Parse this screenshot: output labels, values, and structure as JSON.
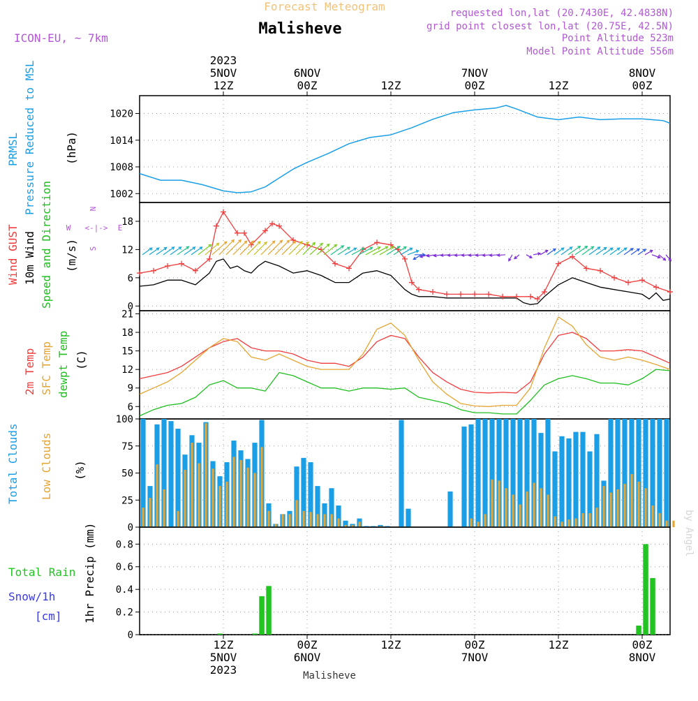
{
  "header": {
    "product_title": "Forecast Meteogram",
    "location": "Malisheve",
    "model": "ICON-EU, ~ 7km",
    "requested": "requested lon,lat (20.7430E, 42.4838N)",
    "grid_point": "grid point closest lon,lat (20.75E, 42.5N)",
    "point_altitude": "Point Altitude 523m",
    "model_altitude": "Model Point Altitude 556m",
    "footer_location": "Malisheve",
    "credit": "by Angel"
  },
  "colors": {
    "pressure": "#1a9fe6",
    "gust": "#f03c3c",
    "wind": "#000000",
    "temp2m": "#f03c3c",
    "sfc_temp": "#e6a532",
    "dewpt": "#1fbf1f",
    "total_clouds": "#1a9fe6",
    "low_clouds": "#e6a532",
    "rain": "#22c422",
    "snow": "#3a3ae6",
    "title": "#f2c277",
    "info": "#b257d6"
  },
  "time_axis": {
    "ticks_top": [
      {
        "t": 12,
        "lines": [
          "2023",
          "5NOV",
          "12Z"
        ]
      },
      {
        "t": 24,
        "lines": [
          "6NOV",
          "00Z"
        ]
      },
      {
        "t": 36,
        "lines": [
          "12Z"
        ]
      },
      {
        "t": 48,
        "lines": [
          "7NOV",
          "00Z"
        ]
      },
      {
        "t": 60,
        "lines": [
          "12Z"
        ]
      },
      {
        "t": 72,
        "lines": [
          "8NOV",
          "00Z"
        ]
      }
    ],
    "ticks_bottom": [
      {
        "t": 12,
        "lines": [
          "12Z",
          "5NOV",
          "2023"
        ]
      },
      {
        "t": 24,
        "lines": [
          "00Z",
          "6NOV"
        ]
      },
      {
        "t": 36,
        "lines": [
          "12Z"
        ]
      },
      {
        "t": 48,
        "lines": [
          "00Z",
          "7NOV"
        ]
      },
      {
        "t": 60,
        "lines": [
          "12Z"
        ]
      },
      {
        "t": 72,
        "lines": [
          "00Z",
          "8NOV"
        ]
      }
    ]
  },
  "chart_data": [
    {
      "type": "line",
      "id": "pressure",
      "labels": [
        "PRMSL",
        "Pressure Reduced to MSL",
        "(hPa)"
      ],
      "ylim": [
        1000,
        1024
      ],
      "yticks": [
        1002,
        1008,
        1014,
        1020
      ],
      "grid": true,
      "series": [
        {
          "name": "PRMSL",
          "x": [
            0,
            3,
            6,
            9,
            12,
            14,
            16,
            18,
            20,
            22,
            24,
            27,
            30,
            33,
            36,
            39,
            42,
            45,
            48,
            51,
            52.5,
            54,
            57,
            60,
            63,
            66,
            69,
            72,
            75,
            76
          ],
          "y": [
            1006.5,
            1005,
            1005,
            1004,
            1002.6,
            1002.2,
            1002.4,
            1003.5,
            1005.5,
            1007.5,
            1009,
            1011,
            1013.2,
            1014.6,
            1015.2,
            1016.8,
            1018.7,
            1020.2,
            1020.8,
            1021.2,
            1021.8,
            1021,
            1019.2,
            1018.6,
            1019.2,
            1018.6,
            1018.8,
            1018.8,
            1018.4,
            1017.8
          ]
        }
      ]
    },
    {
      "type": "line",
      "id": "wind",
      "labels": [
        "Wind GUST",
        "10m Wind",
        "Speed and Direction",
        "(m/s)"
      ],
      "compass": [
        "N",
        "E",
        "S",
        "W"
      ],
      "ylim": [
        -1,
        22
      ],
      "yticks": [
        0,
        6,
        12,
        18
      ],
      "grid": true,
      "series": [
        {
          "name": "Wind GUST",
          "x": [
            0,
            2,
            4,
            6,
            8,
            10,
            11,
            12,
            14,
            15,
            16,
            18,
            19,
            20,
            22,
            24,
            26,
            28,
            30,
            32,
            34,
            36,
            37,
            38,
            39,
            40,
            42,
            44,
            46,
            48,
            50,
            52,
            54,
            56,
            57,
            58,
            60,
            62,
            64,
            66,
            68,
            70,
            72,
            74,
            76
          ],
          "y": [
            7,
            7.5,
            8.5,
            9,
            7.5,
            10,
            17,
            20,
            15.5,
            15.5,
            13,
            16,
            17.5,
            17,
            14,
            13,
            12,
            9,
            8,
            12,
            13.5,
            13,
            12,
            10,
            5,
            3.5,
            3,
            2.5,
            2.5,
            2.5,
            2.5,
            2,
            2,
            2,
            1.5,
            3,
            9,
            10.5,
            8,
            7.5,
            6,
            5,
            5.5,
            4,
            3
          ]
        },
        {
          "name": "10m Wind",
          "x": [
            0,
            2,
            4,
            6,
            8,
            10,
            11,
            12,
            13,
            14,
            15,
            16,
            17,
            18,
            19,
            20,
            22,
            24,
            26,
            28,
            30,
            32,
            34,
            36,
            37,
            38,
            39,
            40,
            42,
            44,
            46,
            48,
            50,
            52,
            54,
            55,
            56,
            57,
            58,
            60,
            62,
            64,
            66,
            68,
            70,
            72,
            73,
            74,
            75,
            76
          ],
          "y": [
            4.2,
            4.5,
            5.5,
            5.5,
            4.5,
            7,
            9.5,
            10,
            8,
            8.5,
            7.5,
            7,
            8.5,
            9.5,
            9,
            8.5,
            7,
            7.5,
            6.5,
            5,
            5,
            7,
            7.5,
            6.5,
            5,
            3.5,
            2.5,
            2,
            2,
            1.7,
            1.7,
            1.7,
            1.7,
            1.7,
            1.7,
            0.7,
            0.3,
            0.5,
            2,
            4.5,
            6,
            5,
            4,
            3.5,
            3,
            2.5,
            1.5,
            2.8,
            1.2,
            1.5
          ]
        }
      ],
      "wind_arrows": {
        "x": [
          0,
          1,
          2,
          3,
          4,
          5,
          6,
          7,
          8,
          9,
          10,
          11,
          12,
          13,
          14,
          15,
          16,
          17,
          18,
          19,
          20,
          21,
          22,
          23,
          24,
          25,
          26,
          27,
          28,
          29,
          30,
          31,
          32,
          33,
          34,
          35,
          36,
          37,
          38,
          39,
          40,
          41,
          42,
          43,
          44,
          45,
          46,
          47,
          48,
          49,
          50,
          51,
          52,
          53,
          54,
          55,
          56,
          57,
          58,
          59,
          60,
          61,
          62,
          63,
          64,
          65,
          66,
          67,
          68,
          69,
          70,
          71,
          72,
          73,
          74,
          75
        ],
        "speed": [
          4,
          4,
          4.5,
          5,
          5,
          5.5,
          5,
          5,
          7,
          8,
          9,
          10,
          10,
          9,
          9,
          8.5,
          8,
          9,
          9.5,
          9.5,
          9,
          8.5,
          8,
          7.5,
          7.5,
          7,
          7,
          6.5,
          5.5,
          5,
          5.5,
          6.5,
          7,
          7.5,
          7,
          6.5,
          6,
          5,
          4,
          3,
          2.5,
          2,
          2,
          2,
          2,
          2,
          2,
          2,
          2,
          2,
          2,
          2,
          1.5,
          1,
          0.5,
          0.5,
          1,
          2,
          3,
          4,
          5,
          6,
          6,
          5.5,
          5,
          4.5,
          4,
          4,
          4,
          3.5,
          3,
          2.5,
          2,
          2,
          2,
          1.5
        ],
        "dir_to": [
          55,
          55,
          55,
          55,
          55,
          55,
          55,
          55,
          52,
          50,
          48,
          45,
          45,
          45,
          45,
          45,
          45,
          45,
          45,
          45,
          45,
          45,
          45,
          45,
          48,
          50,
          52,
          55,
          58,
          60,
          62,
          62,
          62,
          62,
          60,
          58,
          58,
          60,
          70,
          90,
          240,
          255,
          260,
          262,
          265,
          265,
          265,
          265,
          265,
          265,
          265,
          265,
          265,
          210,
          230,
          120,
          80,
          60,
          55,
          55,
          55,
          55,
          55,
          55,
          55,
          55,
          55,
          55,
          55,
          55,
          55,
          55,
          60,
          110,
          130,
          140
        ]
      }
    },
    {
      "type": "line",
      "id": "temperature",
      "labels": [
        "2m Temp",
        "SFC Temp",
        "dewpt Temp",
        "(C)"
      ],
      "ylim": [
        4,
        21.5
      ],
      "yticks": [
        6,
        9,
        12,
        15,
        18,
        21
      ],
      "grid": true,
      "series": [
        {
          "name": "2m Temp",
          "x": [
            0,
            2,
            4,
            6,
            8,
            10,
            12,
            14,
            16,
            18,
            20,
            22,
            24,
            26,
            28,
            30,
            32,
            34,
            36,
            38,
            40,
            42,
            44,
            46,
            48,
            50,
            52,
            54,
            56,
            58,
            60,
            62,
            64,
            66,
            68,
            70,
            72,
            74,
            76
          ],
          "y": [
            10.5,
            11,
            11.5,
            12.5,
            14,
            15.5,
            16.5,
            17,
            15.5,
            15,
            15,
            14.5,
            13.5,
            13,
            13,
            12.5,
            14,
            16.5,
            17.5,
            17,
            14,
            11.5,
            10,
            8.8,
            8.3,
            8.2,
            8.3,
            8.2,
            10,
            14.5,
            17.5,
            18,
            17,
            15,
            15,
            15.2,
            15,
            14,
            13
          ]
        },
        {
          "name": "SFC Temp",
          "x": [
            0,
            2,
            4,
            6,
            8,
            10,
            12,
            14,
            16,
            18,
            20,
            22,
            24,
            26,
            28,
            30,
            32,
            34,
            36,
            38,
            40,
            42,
            44,
            46,
            48,
            50,
            52,
            54,
            56,
            58,
            60,
            62,
            64,
            66,
            68,
            70,
            72,
            74,
            76
          ],
          "y": [
            8,
            9,
            10,
            11.5,
            13.5,
            15.5,
            17,
            16.5,
            14,
            13.5,
            14.5,
            13.5,
            12.5,
            12,
            12,
            12,
            14.5,
            18.5,
            19.5,
            17.5,
            13.5,
            10,
            8,
            6.5,
            6.1,
            6,
            6.2,
            6.2,
            9,
            15.5,
            20.5,
            19,
            16,
            14,
            13.5,
            14,
            13.5,
            12.8,
            12
          ]
        },
        {
          "name": "dewpt Temp",
          "x": [
            0,
            2,
            4,
            6,
            8,
            10,
            12,
            14,
            16,
            18,
            20,
            22,
            24,
            26,
            28,
            30,
            32,
            34,
            36,
            38,
            40,
            42,
            44,
            46,
            48,
            50,
            52,
            54,
            56,
            58,
            60,
            62,
            64,
            66,
            68,
            70,
            72,
            74,
            76
          ],
          "y": [
            4.5,
            5.5,
            6.2,
            6.5,
            7.5,
            9.5,
            10.2,
            9,
            9,
            8.5,
            11.5,
            11,
            10,
            9,
            9,
            8.5,
            9,
            9,
            8.8,
            9,
            7.5,
            7,
            6.5,
            5.5,
            5,
            5,
            4.8,
            4.8,
            7,
            9.5,
            10.5,
            11,
            10.5,
            9.8,
            9.8,
            9.5,
            10.5,
            12,
            11.8
          ]
        }
      ]
    },
    {
      "type": "bar",
      "id": "clouds",
      "labels": [
        "Total Clouds",
        "Low Clouds",
        "(%)"
      ],
      "ylim": [
        0,
        100
      ],
      "yticks": [
        0,
        25,
        50,
        75,
        100
      ],
      "grid": true,
      "x": [
        0,
        1,
        2,
        3,
        4,
        5,
        6,
        7,
        8,
        9,
        10,
        11,
        12,
        13,
        14,
        15,
        16,
        17,
        18,
        19,
        20,
        21,
        22,
        23,
        24,
        25,
        26,
        27,
        28,
        29,
        30,
        31,
        32,
        33,
        34,
        35,
        36,
        37,
        38,
        39,
        40,
        41,
        42,
        43,
        44,
        45,
        46,
        47,
        48,
        49,
        50,
        51,
        52,
        53,
        54,
        55,
        56,
        57,
        58,
        59,
        60,
        61,
        62,
        63,
        64,
        65,
        66,
        67,
        68,
        69,
        70,
        71,
        72,
        73,
        74,
        75,
        76
      ],
      "series": [
        {
          "name": "Total Clouds",
          "values": [
            100,
            38,
            95,
            100,
            98,
            91,
            67,
            85,
            78,
            97,
            61,
            47,
            60,
            80,
            71,
            63,
            78,
            99,
            22,
            3,
            12,
            15,
            56,
            64,
            60,
            38,
            22,
            36,
            20,
            6,
            3,
            8,
            1,
            1,
            2,
            1,
            0,
            99,
            17,
            0,
            0,
            0,
            0,
            0,
            33,
            0,
            93,
            95,
            100,
            100,
            100,
            100,
            100,
            100,
            100,
            100,
            100,
            87,
            100,
            70,
            84,
            82,
            88,
            88,
            70,
            86,
            43,
            100,
            100,
            100,
            100,
            100,
            100,
            100,
            100,
            100,
            0
          ],
          "low": [
            18,
            27,
            58,
            35,
            0,
            15,
            53,
            78,
            59,
            96,
            54,
            38,
            42,
            65,
            62,
            55,
            50,
            74,
            15,
            3,
            12,
            12,
            25,
            15,
            14,
            12,
            12,
            12,
            8,
            2,
            2,
            5,
            0,
            0,
            1,
            0,
            0,
            0,
            0,
            0,
            0,
            0,
            0,
            0,
            0,
            0,
            0,
            8,
            5,
            12,
            44,
            43,
            36,
            30,
            21,
            33,
            41,
            36,
            30,
            10,
            5,
            7,
            8,
            13,
            13,
            18,
            38,
            32,
            35,
            40,
            49,
            42,
            36,
            20,
            13,
            6,
            6
          ]
        }
      ]
    },
    {
      "type": "bar",
      "id": "precip",
      "labels": [
        "Total Rain",
        "Snow/1h",
        "[cm]",
        "1hr Precip (mm)"
      ],
      "ylim": [
        0,
        0.95
      ],
      "yticks": [
        0,
        0.2,
        0.4,
        0.6,
        0.8
      ],
      "grid": true,
      "x": [
        11,
        16,
        17,
        18,
        71,
        72,
        73
      ],
      "series": [
        {
          "name": "Total Rain",
          "values": [
            0.01,
            0.01,
            0.34,
            0.43,
            0.08,
            0.8,
            0.5
          ]
        }
      ]
    }
  ]
}
